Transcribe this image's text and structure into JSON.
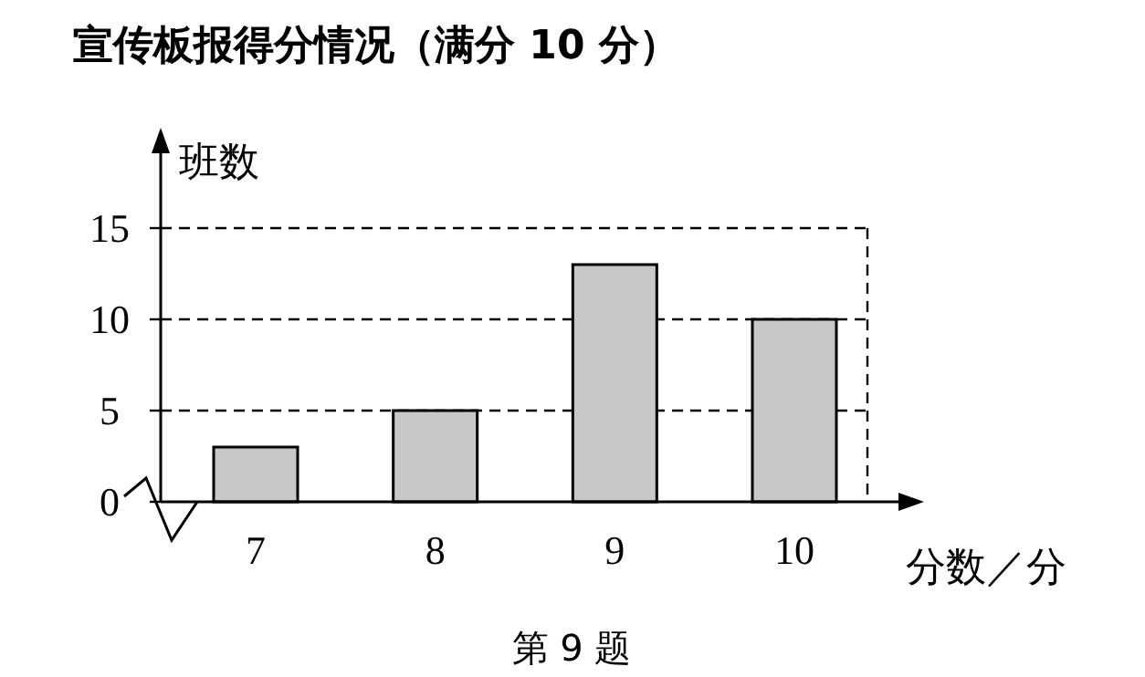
{
  "chart_data": {
    "type": "bar",
    "title": "宣传板报得分情况（满分 10 分）",
    "xlabel": "分数／分",
    "ylabel": "班数",
    "categories": [
      "7",
      "8",
      "9",
      "10"
    ],
    "values": [
      3,
      5,
      13,
      10
    ],
    "color": "#c8c8c8",
    "ylim": [
      0,
      15
    ],
    "yticks": [
      0,
      5,
      10,
      15
    ],
    "grid": "y",
    "line_style": "dashed",
    "annotations": [
      "第 9 题"
    ]
  }
}
